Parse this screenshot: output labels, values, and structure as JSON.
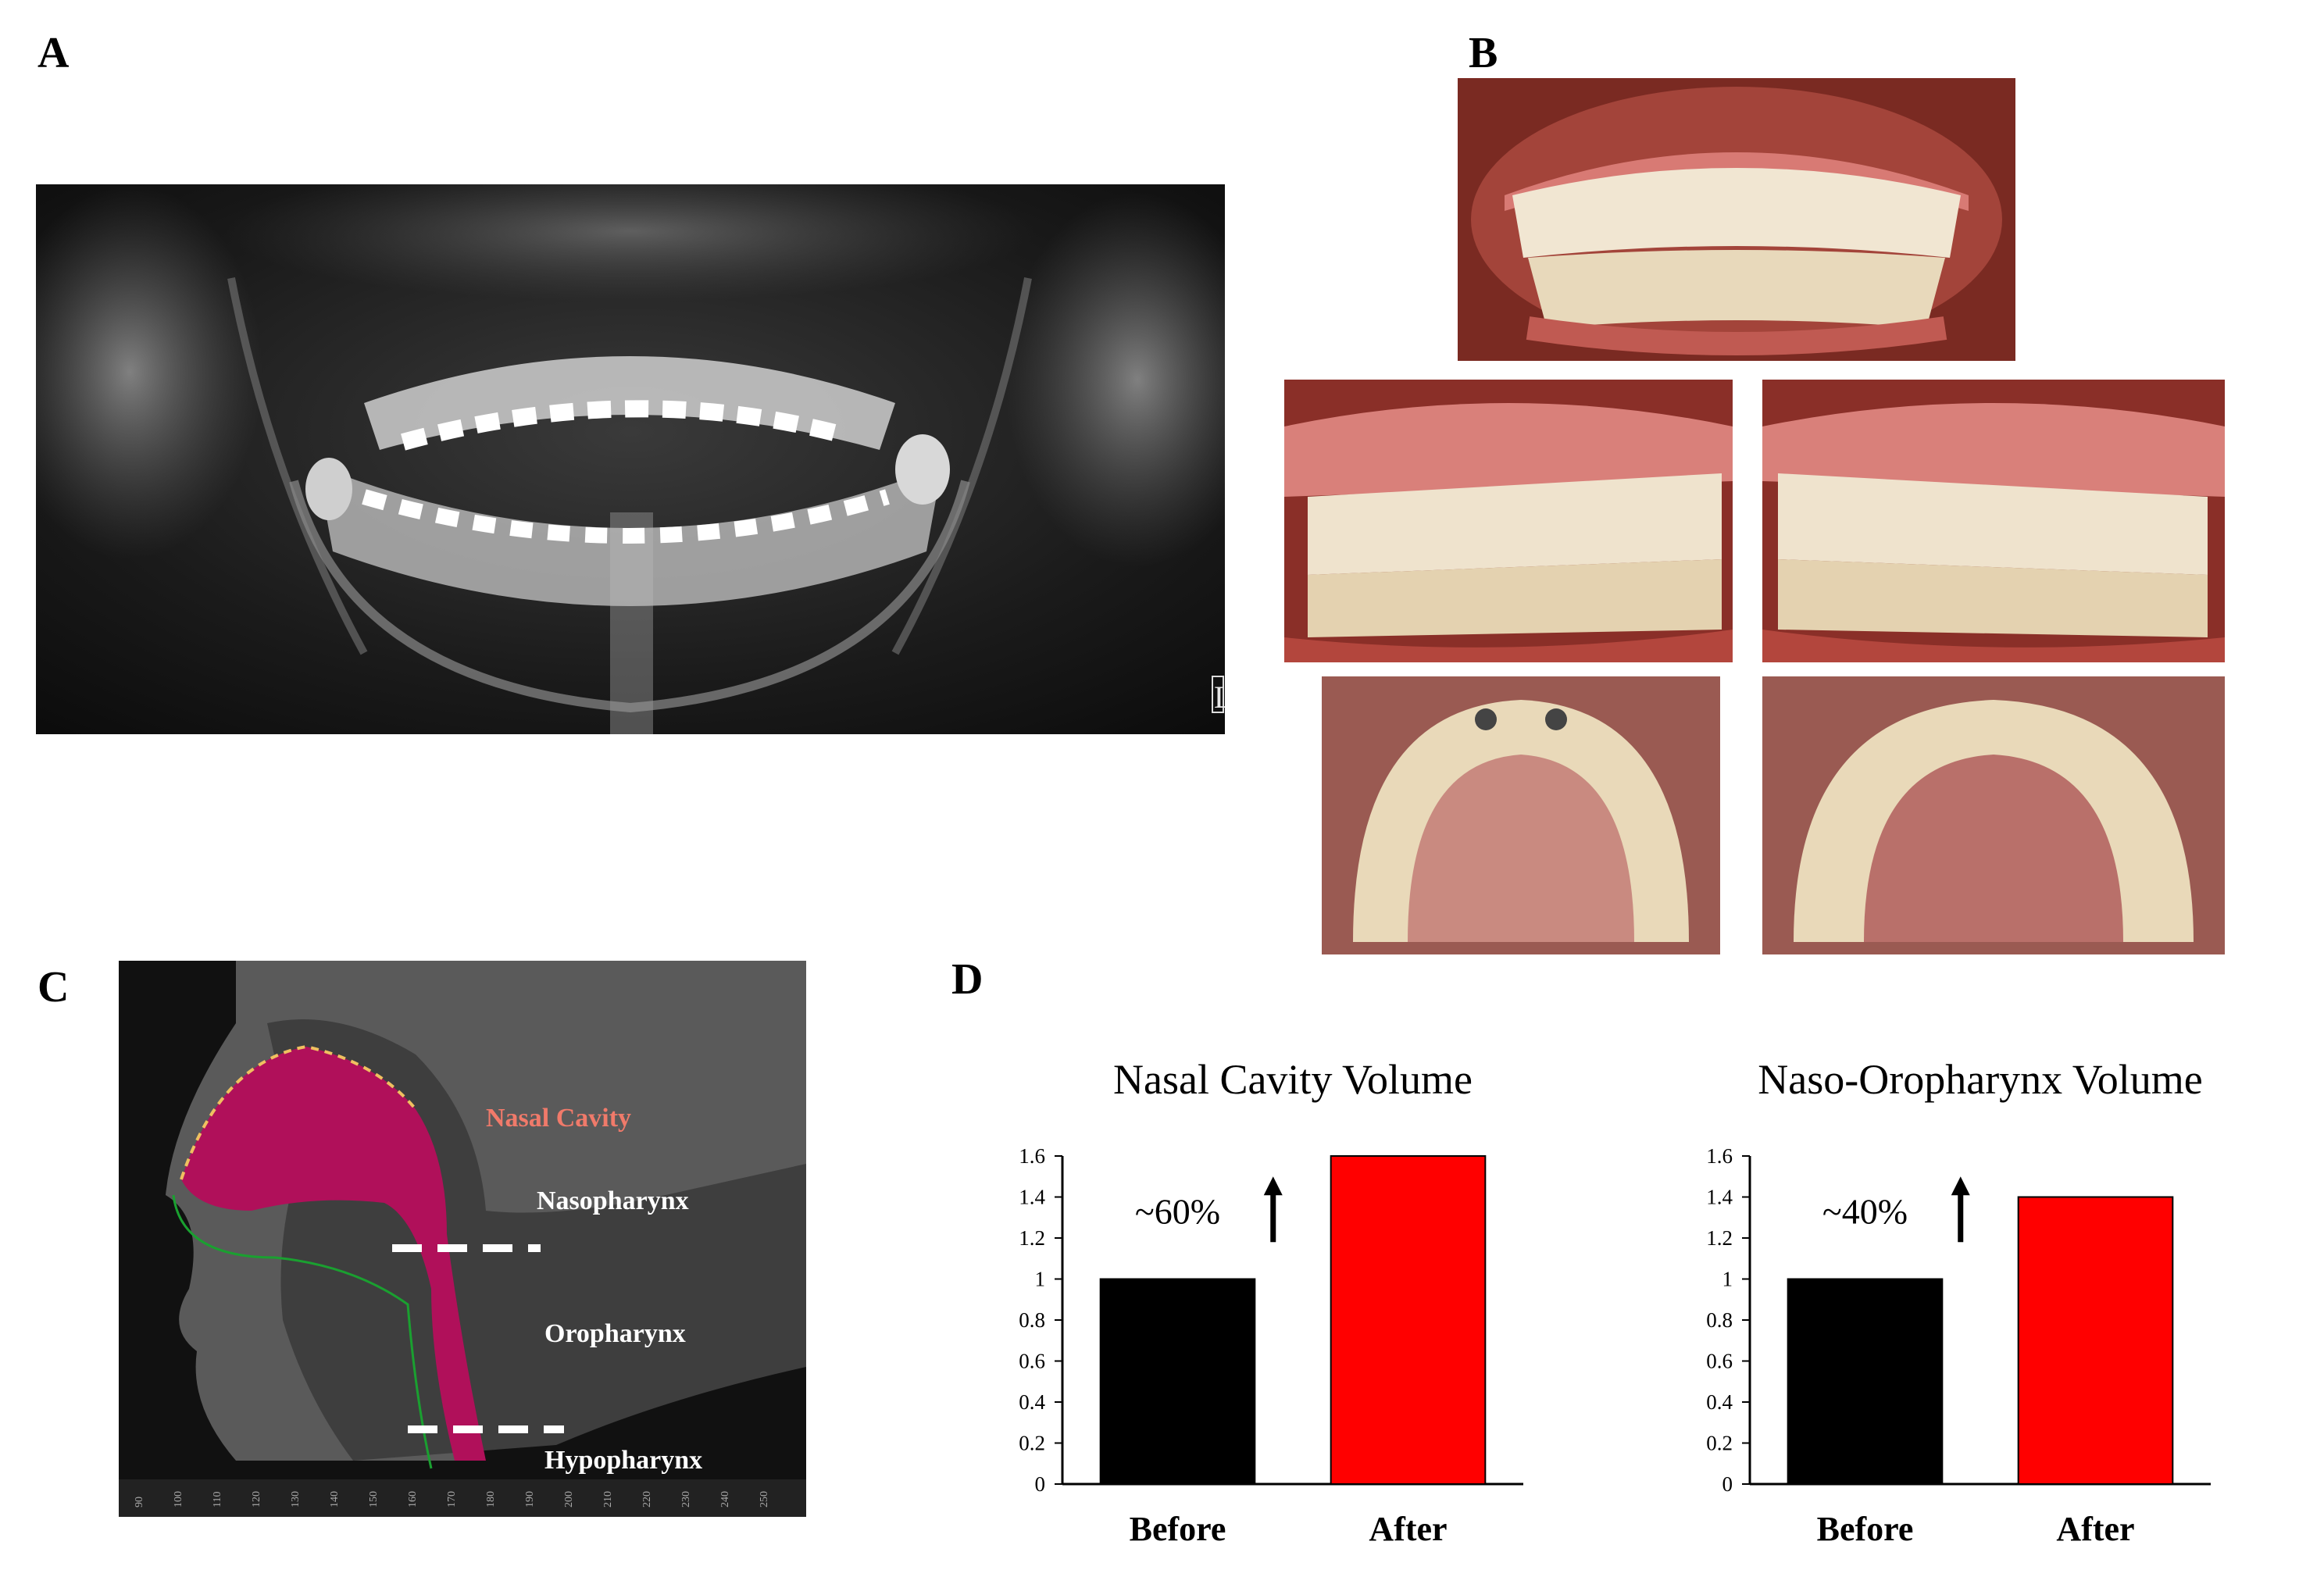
{
  "panels": {
    "a": "A",
    "b": "B",
    "c": "C",
    "d": "D"
  },
  "xray": {
    "marker": "L"
  },
  "ct": {
    "labels": {
      "nasal_cavity": "Nasal Cavity",
      "nasopharynx": "Nasopharynx",
      "oropharynx": "Oropharynx",
      "hypopharynx": "Hypopharynx"
    },
    "ruler_ticks": [
      "90",
      "100",
      "110",
      "120",
      "130",
      "140",
      "150",
      "160",
      "170",
      "180",
      "190",
      "200",
      "210",
      "220",
      "230",
      "240",
      "250"
    ]
  },
  "colors": {
    "before": "#000000",
    "after": "#ff0000",
    "airway": "#b0105a",
    "nasal_label": "#f07a6a"
  },
  "chart_data": [
    {
      "type": "bar",
      "title": "Nasal Cavity Volume",
      "categories": [
        "Before",
        "After"
      ],
      "values": [
        1.0,
        1.6
      ],
      "ylim": [
        0,
        1.6
      ],
      "yticks": [
        "0",
        "0.2",
        "0.4",
        "0.6",
        "0.8",
        "1",
        "1.2",
        "1.4",
        "1.6"
      ],
      "annotation": "~60%",
      "arrow": "up",
      "colors": [
        "#000000",
        "#ff0000"
      ]
    },
    {
      "type": "bar",
      "title": "Naso-Oropharynx Volume",
      "categories": [
        "Before",
        "After"
      ],
      "values": [
        1.0,
        1.4
      ],
      "ylim": [
        0,
        1.6
      ],
      "yticks": [
        "0",
        "0.2",
        "0.4",
        "0.6",
        "0.8",
        "1",
        "1.2",
        "1.4",
        "1.6"
      ],
      "annotation": "~40%",
      "arrow": "up",
      "colors": [
        "#000000",
        "#ff0000"
      ]
    }
  ]
}
